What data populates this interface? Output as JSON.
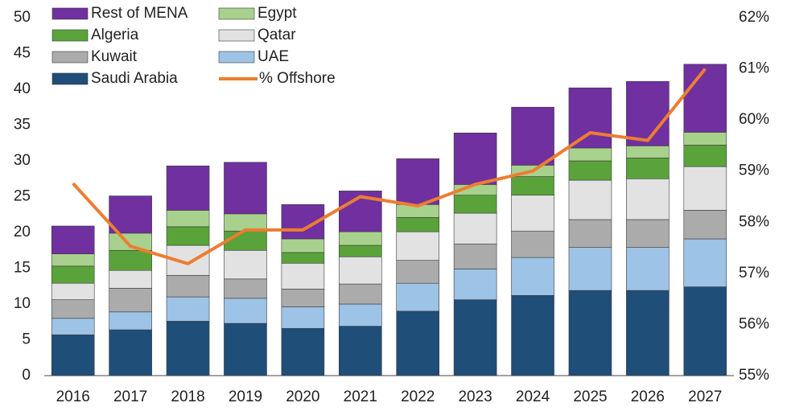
{
  "chart_data": {
    "type": "bar",
    "stacked": true,
    "categories": [
      "2016",
      "2017",
      "2018",
      "2019",
      "2020",
      "2021",
      "2022",
      "2023",
      "2024",
      "2025",
      "2026",
      "2027"
    ],
    "series": [
      {
        "name": "Saudi Arabia",
        "color": "#1f4e79",
        "values": [
          5.7,
          6.4,
          7.6,
          7.3,
          6.6,
          6.9,
          9.0,
          10.6,
          11.2,
          11.9,
          11.9,
          12.4
        ]
      },
      {
        "name": "UAE",
        "color": "#9dc3e6",
        "values": [
          2.3,
          2.5,
          3.4,
          3.5,
          3.0,
          3.1,
          3.9,
          4.3,
          5.3,
          6.0,
          6.0,
          6.7
        ]
      },
      {
        "name": "Kuwait",
        "color": "#ababab",
        "values": [
          2.6,
          3.3,
          3.0,
          2.7,
          2.5,
          2.8,
          3.2,
          3.5,
          3.7,
          3.9,
          3.9,
          4.0
        ]
      },
      {
        "name": "Qatar",
        "color": "#e2e2e2",
        "values": [
          2.3,
          2.5,
          4.2,
          4.0,
          3.6,
          3.8,
          4.0,
          4.3,
          5.0,
          5.5,
          5.7,
          6.1
        ]
      },
      {
        "name": "Algeria",
        "color": "#5aa33a",
        "values": [
          2.4,
          2.8,
          2.6,
          2.7,
          1.5,
          1.6,
          2.0,
          2.5,
          2.6,
          2.7,
          2.9,
          3.0
        ]
      },
      {
        "name": "Egypt",
        "color": "#a9d18e",
        "values": [
          1.7,
          2.4,
          2.3,
          2.4,
          1.9,
          1.9,
          1.8,
          1.5,
          1.6,
          1.8,
          1.7,
          1.8
        ]
      },
      {
        "name": "Rest of MENA",
        "color": "#7030a0",
        "values": [
          3.9,
          5.2,
          6.2,
          7.2,
          4.8,
          5.7,
          6.4,
          7.2,
          8.1,
          8.4,
          9.0,
          9.5
        ]
      },
      {
        "name": "% Offshore",
        "color": "#ed7d31",
        "type": "line",
        "axis": "y2",
        "values": [
          58.76,
          57.53,
          57.19,
          57.85,
          57.85,
          58.5,
          58.32,
          58.74,
          59.0,
          59.75,
          59.6,
          61.0
        ]
      }
    ],
    "ylim": [
      0,
      50
    ],
    "yticks": [
      0,
      5,
      10,
      15,
      20,
      25,
      30,
      35,
      40,
      45,
      50
    ],
    "y2lim": [
      55,
      62
    ],
    "y2ticks": [
      {
        "value": 55,
        "label": "55%"
      },
      {
        "value": 56,
        "label": "56%"
      },
      {
        "value": 57,
        "label": "57%"
      },
      {
        "value": 58,
        "label": "58%"
      },
      {
        "value": 59,
        "label": "59%"
      },
      {
        "value": 60,
        "label": "60%"
      },
      {
        "value": 61,
        "label": "61%"
      },
      {
        "value": 62,
        "label": "62%"
      }
    ],
    "grid": false,
    "legend": "top-left"
  }
}
